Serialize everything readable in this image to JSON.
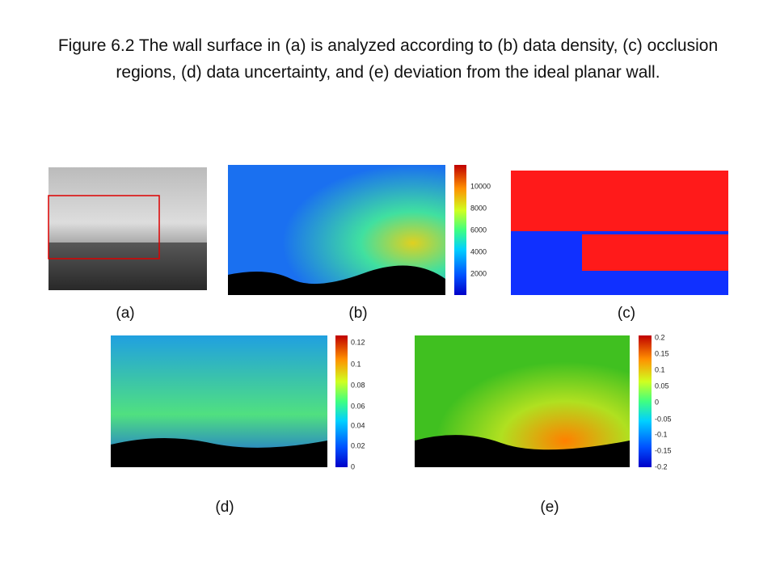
{
  "title": "Figure 6.2 The wall surface in (a) is analyzed according to (b) data density, (c) occlusion regions, (d) data uncertainty, and (e) deviation from the ideal planar wall.",
  "panels": [
    {
      "label": "(a)"
    },
    {
      "label": "(b)",
      "colorbar_ticks": [
        "10000",
        "8000",
        "6000",
        "4000",
        "2000"
      ]
    },
    {
      "label": "(c)"
    },
    {
      "label": "(d)",
      "colorbar_ticks": [
        "0.12",
        "0.1",
        "0.08",
        "0.06",
        "0.04",
        "0.02",
        "0"
      ]
    },
    {
      "label": "(e)",
      "colorbar_ticks": [
        "0.2",
        "0.15",
        "0.1",
        "0.05",
        "0",
        "-0.05",
        "-0.1",
        "-0.15",
        "-0.2"
      ]
    }
  ]
}
